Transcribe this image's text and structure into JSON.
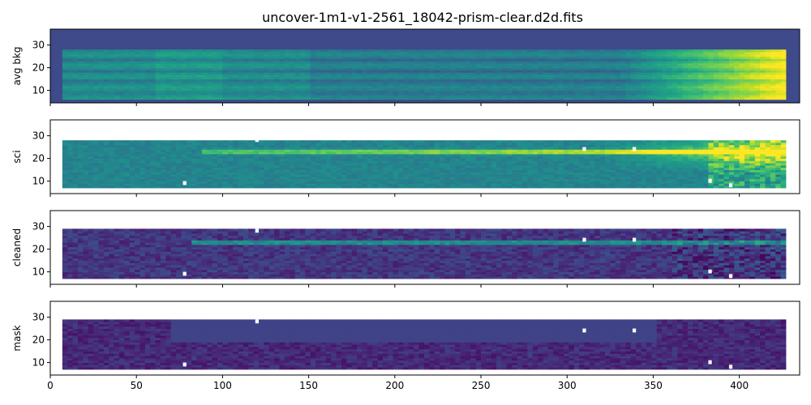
{
  "figure": {
    "title": "uncover-1m1-v1-2561_18042-prism-clear.d2d.fits"
  },
  "chart_data": [
    {
      "type": "heatmap",
      "ylabel": "avg bkg",
      "xlim": [
        0,
        435
      ],
      "ylim": [
        4.5,
        37
      ],
      "xticks": [
        "0",
        "50",
        "100",
        "150",
        "200",
        "250",
        "300",
        "350",
        "400"
      ],
      "xtick_values": [
        0,
        50,
        100,
        150,
        200,
        250,
        300,
        350,
        400
      ],
      "yticks": [
        "10",
        "20",
        "30"
      ],
      "ytick_values": [
        10,
        20,
        30
      ],
      "x_tick_labels_visible": false,
      "data_extent": {
        "x": [
          7,
          427
        ],
        "y": [
          6,
          28
        ]
      },
      "colormap": "viridis",
      "background_color": "#3e4a89",
      "pattern": "smooth background, brightens strongly toward x>380"
    },
    {
      "type": "heatmap",
      "ylabel": "sci",
      "xlim": [
        0,
        435
      ],
      "ylim": [
        4.5,
        37
      ],
      "xticks": [
        "0",
        "50",
        "100",
        "150",
        "200",
        "250",
        "300",
        "350",
        "400"
      ],
      "xtick_values": [
        0,
        50,
        100,
        150,
        200,
        250,
        300,
        350,
        400
      ],
      "yticks": [
        "10",
        "20",
        "30"
      ],
      "ytick_values": [
        10,
        20,
        30
      ],
      "x_tick_labels_visible": false,
      "data_extent": {
        "x": [
          7,
          427
        ],
        "y": [
          7,
          28
        ]
      },
      "colormap": "viridis",
      "trace_row": 22.5,
      "trace_x_range": [
        85,
        427
      ],
      "pattern": "bright spectral trace at y≈22.5 over teal background, saturated toward red end"
    },
    {
      "type": "heatmap",
      "ylabel": "cleaned",
      "xlim": [
        0,
        435
      ],
      "ylim": [
        4.5,
        37
      ],
      "xticks": [
        "0",
        "50",
        "100",
        "150",
        "200",
        "250",
        "300",
        "350",
        "400"
      ],
      "xtick_values": [
        0,
        50,
        100,
        150,
        200,
        250,
        300,
        350,
        400
      ],
      "yticks": [
        "10",
        "20",
        "30"
      ],
      "ytick_values": [
        10,
        20,
        30
      ],
      "x_tick_labels_visible": false,
      "data_extent": {
        "x": [
          7,
          427
        ],
        "y": [
          7,
          29
        ]
      },
      "colormap": "viridis",
      "trace_row": 22.5,
      "trace_x_range": [
        80,
        427
      ],
      "pattern": "background-subtracted; dark noisy background with thin yellow-green trace"
    },
    {
      "type": "heatmap",
      "ylabel": "mask",
      "xlim": [
        0,
        435
      ],
      "ylim": [
        4.5,
        37
      ],
      "xticks": [
        "0",
        "50",
        "100",
        "150",
        "200",
        "250",
        "300",
        "350",
        "400"
      ],
      "xtick_values": [
        0,
        50,
        100,
        150,
        200,
        250,
        300,
        350,
        400
      ],
      "yticks": [
        "10",
        "20",
        "30"
      ],
      "ytick_values": [
        10,
        20,
        30
      ],
      "x_tick_labels_visible": true,
      "data_extent": {
        "x": [
          7,
          427
        ],
        "y": [
          7,
          29
        ]
      },
      "colormap": "viridis",
      "pattern": "flat masked band y≈19–28 for x 67–350; noisy elsewhere"
    }
  ],
  "gaps": [
    {
      "panel": [
        1,
        2,
        3
      ],
      "x": 78,
      "y": 9
    },
    {
      "panel": [
        1,
        2,
        3
      ],
      "x": 120,
      "y": 28
    },
    {
      "panel": [
        1,
        2,
        3
      ],
      "x": 310,
      "y": 24
    },
    {
      "panel": [
        1,
        2,
        3
      ],
      "x": 339,
      "y": 24
    },
    {
      "panel": [
        1,
        2,
        3
      ],
      "x": 383,
      "y": 10
    },
    {
      "panel": [
        1,
        2,
        3
      ],
      "x": 395,
      "y": 8
    }
  ]
}
